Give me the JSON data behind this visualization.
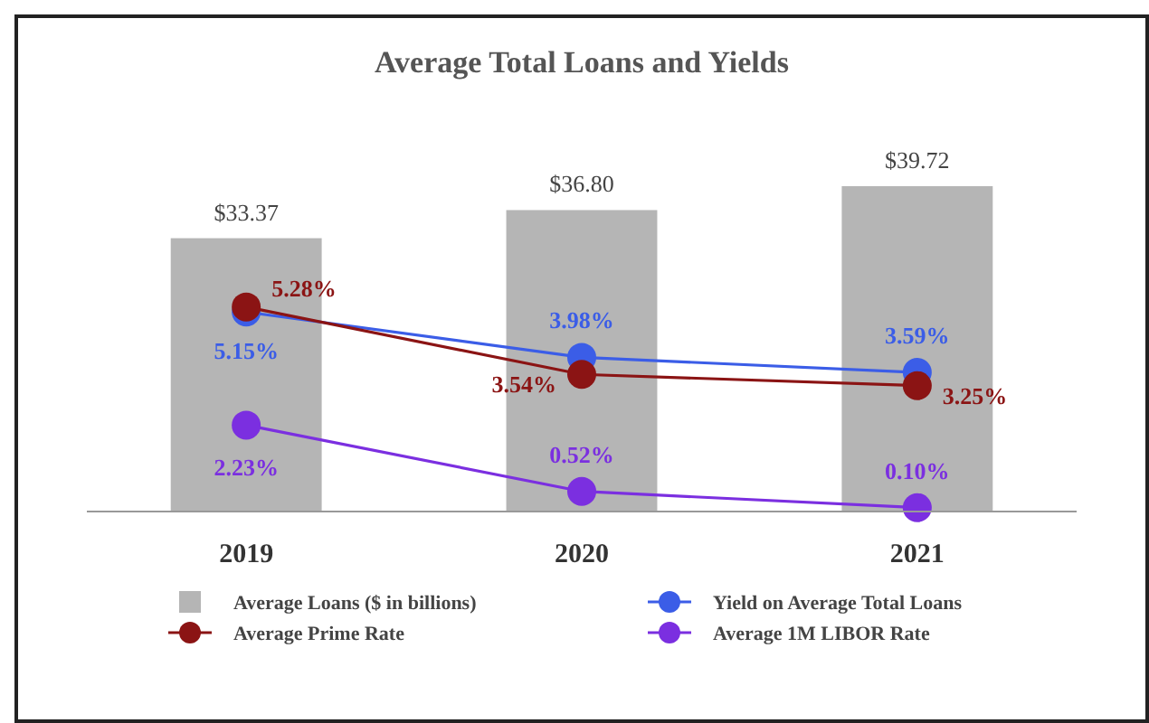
{
  "chart_data": {
    "type": "bar",
    "title": "Average Total Loans and Yields",
    "categories": [
      "2019",
      "2020",
      "2021"
    ],
    "legend": "bottom",
    "marker": "circle",
    "series": [
      {
        "name": "Average Loans ($ in billions)",
        "color": "#b5b5b5",
        "values": [
          33.37,
          36.8,
          39.72
        ],
        "value_labels": [
          "$33.37",
          "$36.80",
          "$39.72"
        ]
      },
      {
        "name": "Yield on Average Total Loans",
        "type": "line",
        "axis": "y2",
        "color": "#3b5de7",
        "values": [
          5.15,
          3.98,
          3.59
        ],
        "value_labels": [
          "5.15%",
          "3.98%",
          "3.59%"
        ]
      },
      {
        "name": "Average Prime Rate",
        "type": "line",
        "axis": "y2",
        "color": "#8b1414",
        "values": [
          5.28,
          3.54,
          3.25
        ],
        "value_labels": [
          "5.28%",
          "3.54%",
          "3.25%"
        ]
      },
      {
        "name": "Average 1M LIBOR Rate",
        "type": "line",
        "axis": "y2",
        "color": "#7b2fe0",
        "values": [
          2.23,
          0.52,
          0.1
        ],
        "value_labels": [
          "2.23%",
          "0.52%",
          "0.10%"
        ]
      }
    ]
  }
}
